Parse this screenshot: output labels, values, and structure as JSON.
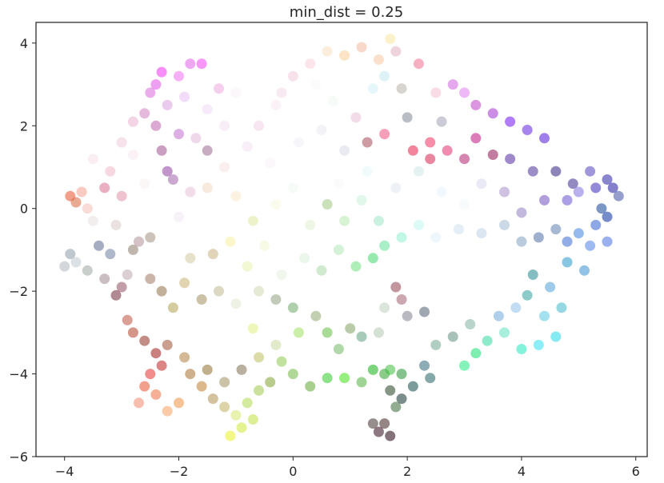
{
  "chart_data": {
    "type": "scatter",
    "title": "min_dist = 0.25",
    "xlabel": "",
    "ylabel": "",
    "xlim": [
      -4.5,
      6.2
    ],
    "ylim": [
      -6,
      4.5
    ],
    "xticks": [
      -4,
      -2,
      0,
      2,
      4,
      6
    ],
    "yticks": [
      -6,
      -4,
      -2,
      0,
      2,
      4
    ],
    "xtick_labels": [
      "−4",
      "−2",
      "0",
      "2",
      "4",
      "6"
    ],
    "ytick_labels": [
      "−6",
      "−4",
      "−2",
      "0",
      "2",
      "4"
    ],
    "grid": false,
    "legend": "none",
    "marker_alpha": 0.55,
    "points": [
      {
        "x": -3.9,
        "y": 0.3,
        "c": "#e8502a"
      },
      {
        "x": -3.8,
        "y": 0.15,
        "c": "#d9623a"
      },
      {
        "x": -3.7,
        "y": 0.4,
        "c": "#f0a090"
      },
      {
        "x": -3.6,
        "y": 0.0,
        "c": "#f4c0b8"
      },
      {
        "x": -3.9,
        "y": -1.1,
        "c": "#8a9aa8"
      },
      {
        "x": -4.0,
        "y": -1.4,
        "c": "#b0b8c0"
      },
      {
        "x": -3.8,
        "y": -1.3,
        "c": "#c0c8d0"
      },
      {
        "x": -3.6,
        "y": -1.5,
        "c": "#9aa8a0"
      },
      {
        "x": -3.4,
        "y": -0.9,
        "c": "#5a6a90"
      },
      {
        "x": -3.2,
        "y": -1.1,
        "c": "#7080a0"
      },
      {
        "x": -3.3,
        "y": -1.7,
        "c": "#a08890"
      },
      {
        "x": -3.0,
        "y": -1.9,
        "c": "#905060"
      },
      {
        "x": -3.1,
        "y": -2.1,
        "c": "#702838"
      },
      {
        "x": -2.9,
        "y": -1.6,
        "c": "#c0a8b0"
      },
      {
        "x": -2.7,
        "y": -0.8,
        "c": "#b09098"
      },
      {
        "x": -3.3,
        "y": 0.5,
        "c": "#d87090"
      },
      {
        "x": -3.0,
        "y": 0.3,
        "c": "#e090a8"
      },
      {
        "x": -3.2,
        "y": 0.9,
        "c": "#f0b8c8"
      },
      {
        "x": -3.5,
        "y": 1.2,
        "c": "#f8e0e8"
      },
      {
        "x": -3.0,
        "y": 1.6,
        "c": "#f0c8d8"
      },
      {
        "x": -2.8,
        "y": 2.1,
        "c": "#e8b0d0"
      },
      {
        "x": -2.6,
        "y": 2.3,
        "c": "#d080c0"
      },
      {
        "x": -2.4,
        "y": 2.0,
        "c": "#c060b0"
      },
      {
        "x": -2.2,
        "y": 2.5,
        "c": "#d8a0e0"
      },
      {
        "x": -2.3,
        "y": 3.3,
        "c": "#f030f0"
      },
      {
        "x": -2.4,
        "y": 3.0,
        "c": "#e050e8"
      },
      {
        "x": -2.0,
        "y": 3.2,
        "c": "#f070f0"
      },
      {
        "x": -1.8,
        "y": 3.5,
        "c": "#e060e8"
      },
      {
        "x": -1.6,
        "y": 3.5,
        "c": "#f040f0"
      },
      {
        "x": -2.5,
        "y": 2.8,
        "c": "#d868d8"
      },
      {
        "x": -1.9,
        "y": 2.7,
        "c": "#e8c0f0"
      },
      {
        "x": -1.5,
        "y": 2.4,
        "c": "#f0d8f8"
      },
      {
        "x": -2.0,
        "y": 1.8,
        "c": "#c070d0"
      },
      {
        "x": -2.3,
        "y": 1.4,
        "c": "#a05090"
      },
      {
        "x": -2.2,
        "y": 0.9,
        "c": "#9040a0"
      },
      {
        "x": -2.1,
        "y": 0.7,
        "c": "#a060a8"
      },
      {
        "x": -1.8,
        "y": 0.4,
        "c": "#e8c0d8"
      },
      {
        "x": -1.5,
        "y": 1.4,
        "c": "#9a6a90"
      },
      {
        "x": -1.2,
        "y": 2.0,
        "c": "#f0e0f0"
      },
      {
        "x": -1.0,
        "y": 2.8,
        "c": "#f8f0f8"
      },
      {
        "x": -0.6,
        "y": 2.0,
        "c": "#f0d0e8"
      },
      {
        "x": -0.3,
        "y": 2.5,
        "c": "#f8e8f0"
      },
      {
        "x": 0.0,
        "y": 3.2,
        "c": "#f0c8d8"
      },
      {
        "x": 0.3,
        "y": 3.5,
        "c": "#f8d0d8"
      },
      {
        "x": 0.6,
        "y": 3.8,
        "c": "#f8e0c0"
      },
      {
        "x": 0.9,
        "y": 3.7,
        "c": "#f8d098"
      },
      {
        "x": 1.2,
        "y": 3.9,
        "c": "#f0b8a0"
      },
      {
        "x": 1.5,
        "y": 3.6,
        "c": "#f8c8a0"
      },
      {
        "x": 1.7,
        "y": 4.1,
        "c": "#f8e8a0"
      },
      {
        "x": 1.8,
        "y": 3.8,
        "c": "#e0b0c0"
      },
      {
        "x": 1.6,
        "y": 3.2,
        "c": "#c0e8f0"
      },
      {
        "x": 1.4,
        "y": 2.9,
        "c": "#d0f0f8"
      },
      {
        "x": 1.9,
        "y": 2.9,
        "c": "#b8b0a8"
      },
      {
        "x": 2.2,
        "y": 3.5,
        "c": "#f07090"
      },
      {
        "x": 2.5,
        "y": 2.8,
        "c": "#f0c0d0"
      },
      {
        "x": 2.8,
        "y": 3.0,
        "c": "#d060e0"
      },
      {
        "x": 3.0,
        "y": 2.8,
        "c": "#e080f0"
      },
      {
        "x": 3.2,
        "y": 2.5,
        "c": "#c040c8"
      },
      {
        "x": 3.5,
        "y": 2.3,
        "c": "#a030d0"
      },
      {
        "x": 3.8,
        "y": 2.1,
        "c": "#7010f0"
      },
      {
        "x": 4.1,
        "y": 1.9,
        "c": "#6020e0"
      },
      {
        "x": 4.4,
        "y": 1.7,
        "c": "#5018d8"
      },
      {
        "x": 3.2,
        "y": 1.7,
        "c": "#c01080"
      },
      {
        "x": 3.5,
        "y": 1.3,
        "c": "#901050"
      },
      {
        "x": 3.0,
        "y": 1.2,
        "c": "#b02070"
      },
      {
        "x": 2.7,
        "y": 1.4,
        "c": "#e03070"
      },
      {
        "x": 2.4,
        "y": 1.6,
        "c": "#f03060"
      },
      {
        "x": 2.1,
        "y": 1.4,
        "c": "#e8204a"
      },
      {
        "x": 2.4,
        "y": 1.2,
        "c": "#d82050"
      },
      {
        "x": 1.6,
        "y": 1.8,
        "c": "#f05080"
      },
      {
        "x": 1.3,
        "y": 1.6,
        "c": "#a84858"
      },
      {
        "x": 2.0,
        "y": 2.2,
        "c": "#808898"
      },
      {
        "x": 2.6,
        "y": 2.1,
        "c": "#a0a0b8"
      },
      {
        "x": 3.8,
        "y": 1.2,
        "c": "#5028a0"
      },
      {
        "x": 4.2,
        "y": 0.9,
        "c": "#4a3098"
      },
      {
        "x": 4.6,
        "y": 0.9,
        "c": "#302080"
      },
      {
        "x": 4.9,
        "y": 0.6,
        "c": "#3a2a90"
      },
      {
        "x": 5.2,
        "y": 0.9,
        "c": "#5040c0"
      },
      {
        "x": 5.5,
        "y": 0.7,
        "c": "#2a20a8"
      },
      {
        "x": 5.6,
        "y": 0.5,
        "c": "#2018a0"
      },
      {
        "x": 5.3,
        "y": 0.5,
        "c": "#3828b8"
      },
      {
        "x": 5.7,
        "y": 0.3,
        "c": "#4050a0"
      },
      {
        "x": 5.4,
        "y": 0.0,
        "c": "#104098"
      },
      {
        "x": 5.5,
        "y": -0.2,
        "c": "#0830a0"
      },
      {
        "x": 5.3,
        "y": -0.4,
        "c": "#3060d0"
      },
      {
        "x": 5.5,
        "y": -0.8,
        "c": "#4870e0"
      },
      {
        "x": 5.2,
        "y": -0.9,
        "c": "#5080e8"
      },
      {
        "x": 5.0,
        "y": -0.6,
        "c": "#4080e0"
      },
      {
        "x": 4.8,
        "y": -0.8,
        "c": "#3868d0"
      },
      {
        "x": 4.6,
        "y": -0.5,
        "c": "#6080b0"
      },
      {
        "x": 4.3,
        "y": -0.7,
        "c": "#5070a8"
      },
      {
        "x": 4.0,
        "y": -0.8,
        "c": "#80a0c0"
      },
      {
        "x": 3.7,
        "y": -0.4,
        "c": "#a0b8d0"
      },
      {
        "x": 3.3,
        "y": -0.6,
        "c": "#c0d0e8"
      },
      {
        "x": 2.9,
        "y": -0.5,
        "c": "#d0e0f0"
      },
      {
        "x": 2.5,
        "y": -0.7,
        "c": "#e0f0f8"
      },
      {
        "x": 4.0,
        "y": -0.1,
        "c": "#9080c0"
      },
      {
        "x": 3.7,
        "y": 0.4,
        "c": "#a890c8"
      },
      {
        "x": 4.4,
        "y": 0.2,
        "c": "#7050c0"
      },
      {
        "x": 4.8,
        "y": 0.2,
        "c": "#6a50d0"
      },
      {
        "x": 5.0,
        "y": 0.4,
        "c": "#8070e0"
      },
      {
        "x": 5.1,
        "y": -1.5,
        "c": "#3890d0"
      },
      {
        "x": 4.8,
        "y": -1.3,
        "c": "#2898c8"
      },
      {
        "x": 4.5,
        "y": -1.9,
        "c": "#50a0d8"
      },
      {
        "x": 4.2,
        "y": -1.6,
        "c": "#208890"
      },
      {
        "x": 4.1,
        "y": -2.1,
        "c": "#30a0a0"
      },
      {
        "x": 4.7,
        "y": -2.4,
        "c": "#40b8c8"
      },
      {
        "x": 4.4,
        "y": -2.6,
        "c": "#58c8e0"
      },
      {
        "x": 4.6,
        "y": -3.1,
        "c": "#20d8e8"
      },
      {
        "x": 4.3,
        "y": -3.3,
        "c": "#30e0f0"
      },
      {
        "x": 4.0,
        "y": -3.4,
        "c": "#20e8c0"
      },
      {
        "x": 3.7,
        "y": -3.0,
        "c": "#60e0c0"
      },
      {
        "x": 3.4,
        "y": -3.2,
        "c": "#30d8a0"
      },
      {
        "x": 3.2,
        "y": -3.5,
        "c": "#10e070"
      },
      {
        "x": 3.0,
        "y": -3.8,
        "c": "#20e880"
      },
      {
        "x": 2.8,
        "y": -3.1,
        "c": "#609080"
      },
      {
        "x": 2.5,
        "y": -3.3,
        "c": "#70a890"
      },
      {
        "x": 3.1,
        "y": -2.8,
        "c": "#80b0a0"
      },
      {
        "x": 3.6,
        "y": -2.6,
        "c": "#70a8d8"
      },
      {
        "x": 3.9,
        "y": -2.4,
        "c": "#90c0e8"
      },
      {
        "x": 2.3,
        "y": -2.5,
        "c": "#506070"
      },
      {
        "x": 2.0,
        "y": -2.6,
        "c": "#808090"
      },
      {
        "x": 1.9,
        "y": -2.2,
        "c": "#a06070"
      },
      {
        "x": 1.8,
        "y": -1.9,
        "c": "#904050"
      },
      {
        "x": 1.6,
        "y": -2.4,
        "c": "#c0d0c0"
      },
      {
        "x": 1.5,
        "y": -3.0,
        "c": "#b0c8b0"
      },
      {
        "x": 2.3,
        "y": -3.8,
        "c": "#306878"
      },
      {
        "x": 2.1,
        "y": -4.3,
        "c": "#104848"
      },
      {
        "x": 2.4,
        "y": -4.1,
        "c": "#206060"
      },
      {
        "x": 1.9,
        "y": -4.6,
        "c": "#103030"
      },
      {
        "x": 1.7,
        "y": -4.4,
        "c": "#204020"
      },
      {
        "x": 1.6,
        "y": -4.0,
        "c": "#30a030"
      },
      {
        "x": 1.4,
        "y": -3.9,
        "c": "#10b010"
      },
      {
        "x": 1.7,
        "y": -3.9,
        "c": "#40c040"
      },
      {
        "x": 1.9,
        "y": -4.0,
        "c": "#209030"
      },
      {
        "x": 1.8,
        "y": -4.8,
        "c": "#386838"
      },
      {
        "x": 1.6,
        "y": -5.2,
        "c": "#402020"
      },
      {
        "x": 1.5,
        "y": -5.4,
        "c": "#300818"
      },
      {
        "x": 1.7,
        "y": -5.5,
        "c": "#200010"
      },
      {
        "x": 1.4,
        "y": -5.2,
        "c": "#403030"
      },
      {
        "x": 1.2,
        "y": -4.2,
        "c": "#50b040"
      },
      {
        "x": 0.9,
        "y": -4.1,
        "c": "#40e010"
      },
      {
        "x": 0.6,
        "y": -4.1,
        "c": "#30c828"
      },
      {
        "x": 0.3,
        "y": -4.3,
        "c": "#60a830"
      },
      {
        "x": 0.0,
        "y": -4.0,
        "c": "#70b840"
      },
      {
        "x": -0.2,
        "y": -3.7,
        "c": "#90c850"
      },
      {
        "x": -0.4,
        "y": -4.2,
        "c": "#80a030"
      },
      {
        "x": -0.6,
        "y": -4.4,
        "c": "#a0c848"
      },
      {
        "x": -0.8,
        "y": -4.7,
        "c": "#b0d850"
      },
      {
        "x": -0.7,
        "y": -5.1,
        "c": "#c0e040"
      },
      {
        "x": -0.9,
        "y": -5.3,
        "c": "#d0e838"
      },
      {
        "x": -1.1,
        "y": -5.5,
        "c": "#e8f020"
      },
      {
        "x": -1.0,
        "y": -5.0,
        "c": "#d8e870"
      },
      {
        "x": -1.2,
        "y": -4.8,
        "c": "#c0b060"
      },
      {
        "x": -1.4,
        "y": -4.6,
        "c": "#b09050"
      },
      {
        "x": -1.6,
        "y": -4.3,
        "c": "#c08030"
      },
      {
        "x": -1.8,
        "y": -4.0,
        "c": "#a87030"
      },
      {
        "x": -2.0,
        "y": -4.7,
        "c": "#f09040"
      },
      {
        "x": -2.2,
        "y": -4.9,
        "c": "#f8a060"
      },
      {
        "x": -2.4,
        "y": -4.5,
        "c": "#f07040"
      },
      {
        "x": -2.6,
        "y": -4.3,
        "c": "#e85030"
      },
      {
        "x": -2.7,
        "y": -4.7,
        "c": "#f08870"
      },
      {
        "x": -2.5,
        "y": -4.0,
        "c": "#e83030"
      },
      {
        "x": -2.3,
        "y": -3.8,
        "c": "#c02020"
      },
      {
        "x": -2.4,
        "y": -3.5,
        "c": "#a01818"
      },
      {
        "x": -2.6,
        "y": -3.2,
        "c": "#903020"
      },
      {
        "x": -2.8,
        "y": -3.0,
        "c": "#b04028"
      },
      {
        "x": -2.9,
        "y": -2.7,
        "c": "#c05040"
      },
      {
        "x": -2.2,
        "y": -3.3,
        "c": "#a05030"
      },
      {
        "x": -1.9,
        "y": -3.6,
        "c": "#b08040"
      },
      {
        "x": -1.5,
        "y": -3.9,
        "c": "#907030"
      },
      {
        "x": -1.2,
        "y": -4.2,
        "c": "#a09060"
      },
      {
        "x": -0.9,
        "y": -3.9,
        "c": "#807050"
      },
      {
        "x": -0.6,
        "y": -3.6,
        "c": "#c0c060"
      },
      {
        "x": -0.7,
        "y": -2.9,
        "c": "#e0f080"
      },
      {
        "x": -0.3,
        "y": -3.3,
        "c": "#c8d8a0"
      },
      {
        "x": 0.1,
        "y": -3.0,
        "c": "#a0e060"
      },
      {
        "x": 0.4,
        "y": -2.6,
        "c": "#90a870"
      },
      {
        "x": 0.6,
        "y": -3.0,
        "c": "#60c040"
      },
      {
        "x": 0.8,
        "y": -3.4,
        "c": "#70b860"
      },
      {
        "x": 1.0,
        "y": -2.9,
        "c": "#80a060"
      },
      {
        "x": 1.2,
        "y": -3.1,
        "c": "#60a080"
      },
      {
        "x": 0.0,
        "y": -2.4,
        "c": "#70a868"
      },
      {
        "x": -0.3,
        "y": -2.2,
        "c": "#90a080"
      },
      {
        "x": -0.6,
        "y": -2.0,
        "c": "#d0d8b0"
      },
      {
        "x": -1.0,
        "y": -2.3,
        "c": "#e0e8d0"
      },
      {
        "x": -1.3,
        "y": -2.0,
        "c": "#c0b890"
      },
      {
        "x": -1.6,
        "y": -2.2,
        "c": "#a09060"
      },
      {
        "x": -1.9,
        "y": -1.8,
        "c": "#c8b070"
      },
      {
        "x": -2.1,
        "y": -2.4,
        "c": "#b0a050"
      },
      {
        "x": -2.3,
        "y": -2.0,
        "c": "#907048"
      },
      {
        "x": -2.5,
        "y": -1.7,
        "c": "#a07860"
      },
      {
        "x": -1.8,
        "y": -1.2,
        "c": "#d0c8a0"
      },
      {
        "x": -1.4,
        "y": -1.1,
        "c": "#c8b080"
      },
      {
        "x": -1.1,
        "y": -0.8,
        "c": "#f8f0a0"
      },
      {
        "x": -0.8,
        "y": -1.4,
        "c": "#e8f0b0"
      },
      {
        "x": -0.5,
        "y": -0.9,
        "c": "#f0f8d0"
      },
      {
        "x": -0.2,
        "y": -1.6,
        "c": "#e8f0e0"
      },
      {
        "x": 0.2,
        "y": -1.2,
        "c": "#d8f0d8"
      },
      {
        "x": 0.5,
        "y": -1.5,
        "c": "#a8d8a8"
      },
      {
        "x": 0.8,
        "y": -1.0,
        "c": "#b0e8b8"
      },
      {
        "x": 1.1,
        "y": -1.4,
        "c": "#70e080"
      },
      {
        "x": 1.4,
        "y": -1.2,
        "c": "#40d870"
      },
      {
        "x": 1.6,
        "y": -0.9,
        "c": "#60e098"
      },
      {
        "x": 1.9,
        "y": -0.7,
        "c": "#90f0d0"
      },
      {
        "x": 2.2,
        "y": -0.4,
        "c": "#c0f8f0"
      },
      {
        "x": 1.5,
        "y": -0.3,
        "c": "#a0e8c8"
      },
      {
        "x": 1.2,
        "y": 0.2,
        "c": "#c8f0d8"
      },
      {
        "x": 0.9,
        "y": -0.3,
        "c": "#b8e8b0"
      },
      {
        "x": 0.6,
        "y": 0.1,
        "c": "#a0c880"
      },
      {
        "x": 0.3,
        "y": -0.4,
        "c": "#e0f0d0"
      },
      {
        "x": 0.0,
        "y": 0.5,
        "c": "#f0f8f0"
      },
      {
        "x": -0.3,
        "y": 0.1,
        "c": "#f8f8e0"
      },
      {
        "x": -0.7,
        "y": -0.3,
        "c": "#e0e8a0"
      },
      {
        "x": -1.0,
        "y": 0.3,
        "c": "#f8e8c8"
      },
      {
        "x": -1.5,
        "y": 0.5,
        "c": "#f0d8c0"
      },
      {
        "x": -1.2,
        "y": 1.0,
        "c": "#f8e0e0"
      },
      {
        "x": -0.8,
        "y": 1.5,
        "c": "#f0e0f0"
      },
      {
        "x": -0.4,
        "y": 1.1,
        "c": "#f8f0f8"
      },
      {
        "x": 0.1,
        "y": 1.6,
        "c": "#f0f0f8"
      },
      {
        "x": 0.5,
        "y": 1.9,
        "c": "#e8e8f0"
      },
      {
        "x": 0.9,
        "y": 1.4,
        "c": "#d8d8e8"
      },
      {
        "x": 1.1,
        "y": 2.2,
        "c": "#e8c0d8"
      },
      {
        "x": 0.7,
        "y": 2.6,
        "c": "#f0f8f0"
      },
      {
        "x": 0.4,
        "y": 3.0,
        "c": "#f8f8f8"
      },
      {
        "x": -0.2,
        "y": 2.8,
        "c": "#f0d8e8"
      },
      {
        "x": 0.8,
        "y": 0.6,
        "c": "#f8f8f8"
      },
      {
        "x": 1.3,
        "y": 0.9,
        "c": "#e8f8f8"
      },
      {
        "x": 1.8,
        "y": 0.5,
        "c": "#e0e8f0"
      },
      {
        "x": 2.2,
        "y": 0.9,
        "c": "#d0e8e8"
      },
      {
        "x": 2.6,
        "y": 0.4,
        "c": "#e8f0f8"
      },
      {
        "x": 3.0,
        "y": 0.1,
        "c": "#f0f8f8"
      },
      {
        "x": 3.3,
        "y": 0.6,
        "c": "#d8d8f0"
      },
      {
        "x": -2.0,
        "y": -0.2,
        "c": "#f0e8f0"
      },
      {
        "x": -2.5,
        "y": -0.7,
        "c": "#a09080"
      },
      {
        "x": -2.8,
        "y": -1.0,
        "c": "#8a7a6a"
      },
      {
        "x": -3.5,
        "y": -0.3,
        "c": "#e8e0e0"
      },
      {
        "x": -3.1,
        "y": -0.4,
        "c": "#d8c8c8"
      },
      {
        "x": -2.6,
        "y": 0.6,
        "c": "#f8f0f0"
      },
      {
        "x": -1.7,
        "y": 1.7,
        "c": "#e0b8d8"
      },
      {
        "x": -1.3,
        "y": 2.9,
        "c": "#f0a8e0"
      },
      {
        "x": -2.8,
        "y": 1.3,
        "c": "#f8e8f0"
      }
    ]
  }
}
